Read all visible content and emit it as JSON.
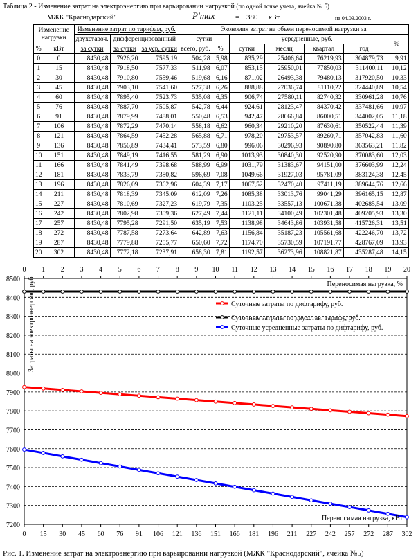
{
  "header": {
    "table_title": "Таблица 2 -   Изменение затрат на электроэнергию при варьировании нагрузкой",
    "table_title_note": "(по одной точке учета, ячейка № 5)",
    "org": "МЖК \"Краснодарский\"",
    "pmax_label": "P'max",
    "pmax_eq": "=",
    "pmax_value": "380",
    "pmax_unit": "кВт",
    "date": "на 04.03.2003 г."
  },
  "table": {
    "h_change": "Изменение нагрузки",
    "h_costs": "Изменение затрат по тарифам, руб.",
    "h_economy": "Экономия затрат на объем переносимой нагрузки за",
    "h_pct": "%",
    "h_kw": "кВт",
    "h_twopart": "двухставоч.",
    "h_diff": "дифференцированный",
    "h_per_day": "за сутки",
    "h_per_day2": "за сутки",
    "h_avg_day": "за уср. сутки",
    "h_sutki": "сутки",
    "h_avg": "усредненные, руб.",
    "h_total_rub": "всего, руб.",
    "h_pct2": "%",
    "h_day": "сутки",
    "h_month": "месяц",
    "h_quarter": "квартал",
    "h_year": "год",
    "h_pct3": "%",
    "rows": [
      [
        "0",
        "0",
        "8430,48",
        "7926,20",
        "7595,19",
        "504,28",
        "5,98",
        "835,29",
        "25406,64",
        "76219,93",
        "304879,73",
        "9,91"
      ],
      [
        "1",
        "15",
        "8430,48",
        "7918,50",
        "7577,33",
        "511,98",
        "6,07",
        "853,15",
        "25950,01",
        "77850,03",
        "311400,11",
        "10,12"
      ],
      [
        "2",
        "30",
        "8430,48",
        "7910,80",
        "7559,46",
        "519,68",
        "6,16",
        "871,02",
        "26493,38",
        "79480,13",
        "317920,50",
        "10,33"
      ],
      [
        "3",
        "45",
        "8430,48",
        "7903,10",
        "7541,60",
        "527,38",
        "6,26",
        "888,88",
        "27036,74",
        "81110,22",
        "324440,89",
        "10,54"
      ],
      [
        "4",
        "60",
        "8430,48",
        "7895,40",
        "7523,73",
        "535,08",
        "6,35",
        "906,74",
        "27580,11",
        "82740,32",
        "330961,28",
        "10,76"
      ],
      [
        "5",
        "76",
        "8430,48",
        "7887,70",
        "7505,87",
        "542,78",
        "6,44",
        "924,61",
        "28123,47",
        "84370,42",
        "337481,66",
        "10,97"
      ],
      [
        "6",
        "91",
        "8430,48",
        "7879,99",
        "7488,01",
        "550,48",
        "6,53",
        "942,47",
        "28666,84",
        "86000,51",
        "344002,05",
        "11,18"
      ],
      [
        "7",
        "106",
        "8430,48",
        "7872,29",
        "7470,14",
        "558,18",
        "6,62",
        "960,34",
        "29210,20",
        "87630,61",
        "350522,44",
        "11,39"
      ],
      [
        "8",
        "121",
        "8430,48",
        "7864,59",
        "7452,28",
        "565,88",
        "6,71",
        "978,20",
        "29753,57",
        "89260,71",
        "357042,83",
        "11,60"
      ],
      [
        "9",
        "136",
        "8430,48",
        "7856,89",
        "7434,41",
        "573,59",
        "6,80",
        "996,06",
        "30296,93",
        "90890,80",
        "363563,21",
        "11,82"
      ],
      [
        "10",
        "151",
        "8430,48",
        "7849,19",
        "7416,55",
        "581,29",
        "6,90",
        "1013,93",
        "30840,30",
        "92520,90",
        "370083,60",
        "12,03"
      ],
      [
        "11",
        "166",
        "8430,48",
        "7841,49",
        "7398,68",
        "588,99",
        "6,99",
        "1031,79",
        "31383,67",
        "94151,00",
        "376603,99",
        "12,24"
      ],
      [
        "12",
        "181",
        "8430,48",
        "7833,79",
        "7380,82",
        "596,69",
        "7,08",
        "1049,66",
        "31927,03",
        "95781,09",
        "383124,38",
        "12,45"
      ],
      [
        "13",
        "196",
        "8430,48",
        "7826,09",
        "7362,96",
        "604,39",
        "7,17",
        "1067,52",
        "32470,40",
        "97411,19",
        "389644,76",
        "12,66"
      ],
      [
        "14",
        "211",
        "8430,48",
        "7818,39",
        "7345,09",
        "612,09",
        "7,26",
        "1085,38",
        "33013,76",
        "99041,29",
        "396165,15",
        "12,87"
      ],
      [
        "15",
        "227",
        "8430,48",
        "7810,69",
        "7327,23",
        "619,79",
        "7,35",
        "1103,25",
        "33557,13",
        "100671,38",
        "402685,54",
        "13,09"
      ],
      [
        "16",
        "242",
        "8430,48",
        "7802,98",
        "7309,36",
        "627,49",
        "7,44",
        "1121,11",
        "34100,49",
        "102301,48",
        "409205,93",
        "13,30"
      ],
      [
        "17",
        "257",
        "8430,48",
        "7795,28",
        "7291,50",
        "635,19",
        "7,53",
        "1138,98",
        "34643,86",
        "103931,58",
        "415726,31",
        "13,51"
      ],
      [
        "18",
        "272",
        "8430,48",
        "7787,58",
        "7273,64",
        "642,89",
        "7,63",
        "1156,84",
        "35187,23",
        "105561,68",
        "422246,70",
        "13,72"
      ],
      [
        "19",
        "287",
        "8430,48",
        "7779,88",
        "7255,77",
        "650,60",
        "7,72",
        "1174,70",
        "35730,59",
        "107191,77",
        "428767,09",
        "13,93"
      ],
      [
        "20",
        "302",
        "8430,48",
        "7772,18",
        "7237,91",
        "658,30",
        "7,81",
        "1192,57",
        "36273,96",
        "108821,87",
        "435287,48",
        "14,15"
      ]
    ]
  },
  "chart_data": {
    "type": "line",
    "ylabel": "Затраты на электроэнергию, руб.",
    "ylim": [
      7200,
      8500
    ],
    "yticks": [
      "7200",
      "7300",
      "7400",
      "7500",
      "7600",
      "7700",
      "7800",
      "7900",
      "8000",
      "8100",
      "8200",
      "8300",
      "8400",
      "8500"
    ],
    "x_top_label": "Переносимая нагрузка, %",
    "x_bottom_label": "Переносимая нагрузка, кВт",
    "x_top_ticks": [
      "0",
      "1",
      "2",
      "3",
      "4",
      "5",
      "6",
      "7",
      "8",
      "9",
      "10",
      "11",
      "12",
      "13",
      "14",
      "15",
      "16",
      "17",
      "18",
      "19",
      "20"
    ],
    "x_bottom_ticks": [
      "0",
      "15",
      "30",
      "45",
      "60",
      "76",
      "91",
      "106",
      "121",
      "136",
      "151",
      "166",
      "181",
      "196",
      "211",
      "227",
      "242",
      "257",
      "272",
      "287",
      "302"
    ],
    "grid": true,
    "legend_position": "top-right",
    "series": [
      {
        "name": "Суточные затраты по дифтарифу, руб.",
        "color": "#ff0000",
        "values": [
          7926.2,
          7918.5,
          7910.8,
          7903.1,
          7895.4,
          7887.7,
          7879.99,
          7872.29,
          7864.59,
          7856.89,
          7849.19,
          7841.49,
          7833.79,
          7826.09,
          7818.39,
          7810.69,
          7802.98,
          7795.28,
          7787.58,
          7779.88,
          7772.18
        ]
      },
      {
        "name": "Суточные затраты по двухстав. тарифу, руб.",
        "color": "#000000",
        "values": [
          8430.48,
          8430.48,
          8430.48,
          8430.48,
          8430.48,
          8430.48,
          8430.48,
          8430.48,
          8430.48,
          8430.48,
          8430.48,
          8430.48,
          8430.48,
          8430.48,
          8430.48,
          8430.48,
          8430.48,
          8430.48,
          8430.48,
          8430.48,
          8430.48
        ]
      },
      {
        "name": "Суточные усредненные затраты по дифтарифу, руб.",
        "color": "#0000ff",
        "values": [
          7595.19,
          7577.33,
          7559.46,
          7541.6,
          7523.73,
          7505.87,
          7488.01,
          7470.14,
          7452.28,
          7434.41,
          7416.55,
          7398.68,
          7380.82,
          7362.96,
          7345.09,
          7327.23,
          7309.36,
          7291.5,
          7273.64,
          7255.77,
          7237.91
        ]
      }
    ]
  },
  "caption": "Рис. 1. Изменение затрат на электроэнергию при варьировании нагрузкой (МЖК \"Краснодарский\", ячейка №5)"
}
